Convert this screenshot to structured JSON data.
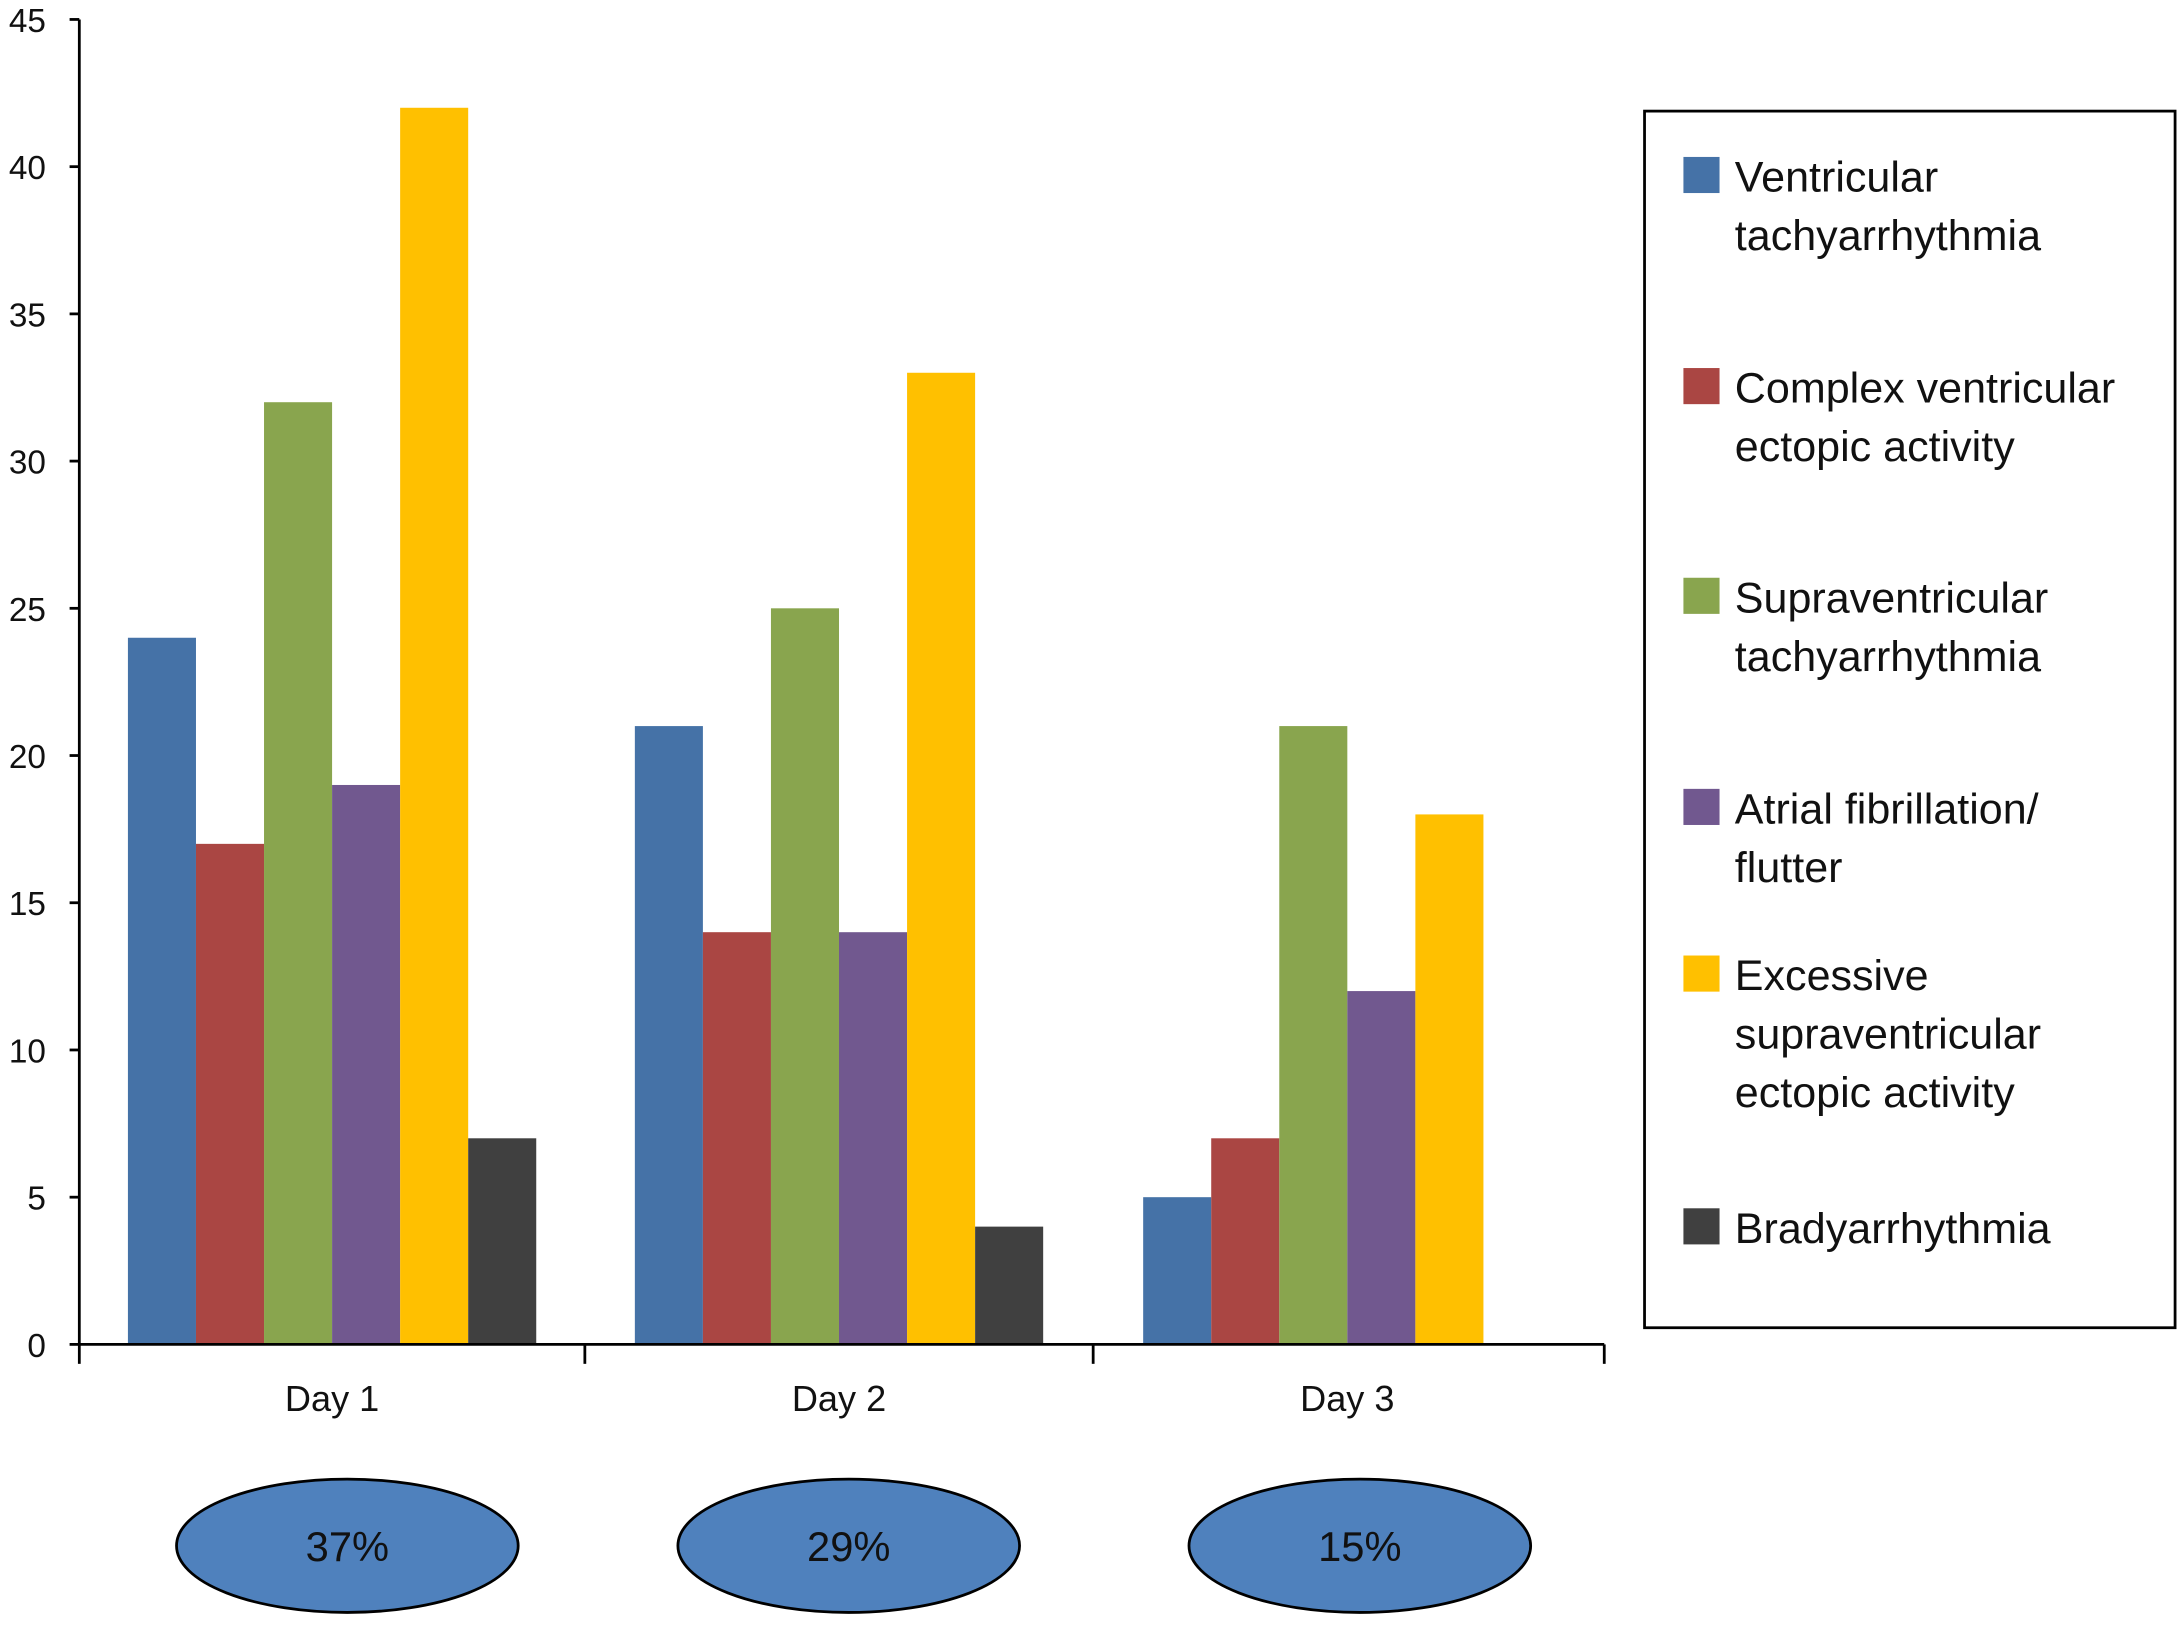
{
  "chart_data": {
    "type": "bar",
    "title": "",
    "xlabel": "",
    "ylabel": "",
    "ylim": [
      0,
      45
    ],
    "yticks": [
      0,
      5,
      10,
      15,
      20,
      25,
      30,
      35,
      40,
      45
    ],
    "grid": false,
    "legend_position": "right",
    "categories": [
      "Day 1",
      "Day 2",
      "Day 3"
    ],
    "series": [
      {
        "name": "Ventricular tachyarrhythmia",
        "legend_lines": [
          "Ventricular",
          "tachyarrhythmia"
        ],
        "color": "#4572a7",
        "values": [
          24,
          21,
          5
        ]
      },
      {
        "name": "Complex ventricular ectopic activity",
        "legend_lines": [
          "Complex ventricular",
          "ectopic activity"
        ],
        "color": "#aa4643",
        "values": [
          17,
          14,
          7
        ]
      },
      {
        "name": "Supraventricular tachyarrhythmia",
        "legend_lines": [
          "Supraventricular",
          "tachyarrhythmia"
        ],
        "color": "#89a54e",
        "values": [
          32,
          25,
          21
        ]
      },
      {
        "name": "Atrial fibrillation/ flutter",
        "legend_lines": [
          "Atrial fibrillation/",
          "flutter"
        ],
        "color": "#71588f",
        "values": [
          19,
          14,
          12
        ]
      },
      {
        "name": "Excessive supraventricular ectopic activity",
        "legend_lines": [
          "Excessive",
          "supraventricular",
          "ectopic activity"
        ],
        "color": "#ffc000",
        "values": [
          42,
          33,
          18
        ]
      },
      {
        "name": "Bradyarrhythmia",
        "legend_lines": [
          "Bradyarrhythmia"
        ],
        "color": "#404040",
        "values": [
          7,
          4,
          0
        ]
      }
    ],
    "annotations": [
      {
        "category": "Day 1",
        "text": "37%"
      },
      {
        "category": "Day 2",
        "text": "29%"
      },
      {
        "category": "Day 3",
        "text": "15%"
      }
    ],
    "annotation_color": "#4f81bd"
  }
}
